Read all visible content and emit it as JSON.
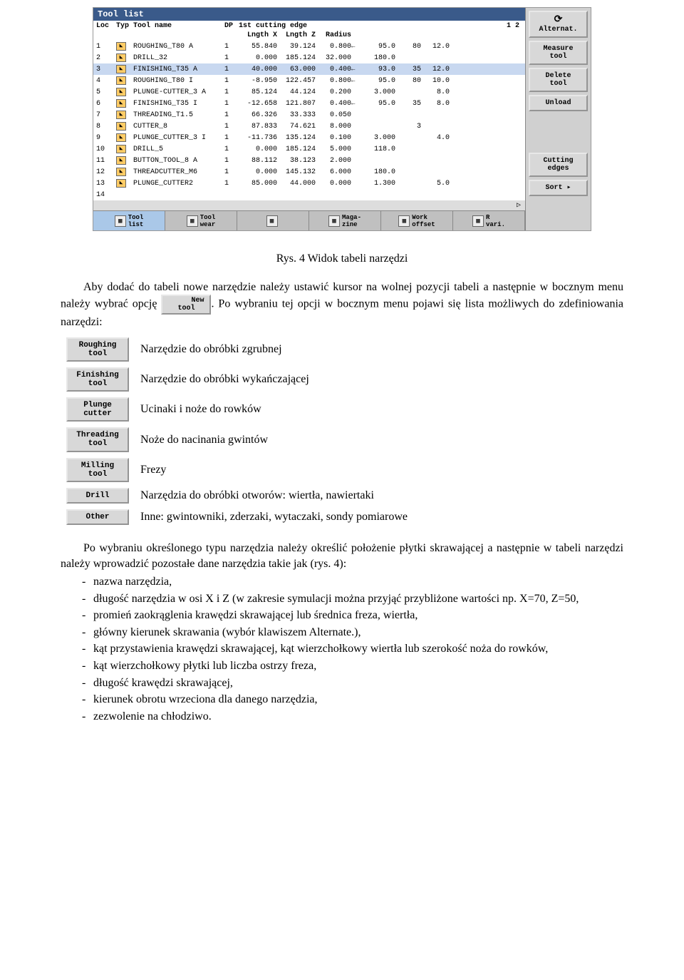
{
  "screenshot": {
    "title": "Tool list",
    "header1": {
      "loc": "Loc",
      "typ": "Typ",
      "name": "Tool name",
      "dp": "DP",
      "edge": "1st cutting edge",
      "page": "1 2"
    },
    "header2": {
      "lx": "Lngth X",
      "lz": "Lngth Z",
      "rad": "Radius"
    },
    "rows": [
      {
        "loc": "1",
        "name": "ROUGHING_T80 A",
        "dp": "1",
        "lx": "55.840",
        "lz": "39.124",
        "rad": "0.800",
        "arr": "←",
        "e1": "95.0",
        "e2": "80",
        "e3": "12.0",
        "sel": false
      },
      {
        "loc": "2",
        "name": "DRILL_32",
        "dp": "1",
        "lx": "0.000",
        "lz": "185.124",
        "rad": "32.000",
        "arr": "",
        "e1": "180.0",
        "e2": "",
        "e3": "",
        "sel": false
      },
      {
        "loc": "3",
        "name": "FINISHING_T35 A",
        "dp": "1",
        "lx": "40.000",
        "lz": "63.000",
        "rad": "0.400",
        "arr": "←",
        "e1": "93.0",
        "e2": "35",
        "e3": "12.0",
        "sel": true
      },
      {
        "loc": "4",
        "name": "ROUGHING_T80 I",
        "dp": "1",
        "lx": "-8.950",
        "lz": "122.457",
        "rad": "0.800",
        "arr": "←",
        "e1": "95.0",
        "e2": "80",
        "e3": "10.0",
        "sel": false
      },
      {
        "loc": "5",
        "name": "PLUNGE-CUTTER_3 A",
        "dp": "1",
        "lx": "85.124",
        "lz": "44.124",
        "rad": "0.200",
        "arr": "",
        "e1": "3.000",
        "e2": "",
        "e3": "8.0",
        "sel": false
      },
      {
        "loc": "6",
        "name": "FINISHING_T35 I",
        "dp": "1",
        "lx": "-12.658",
        "lz": "121.807",
        "rad": "0.400",
        "arr": "←",
        "e1": "95.0",
        "e2": "35",
        "e3": "8.0",
        "sel": false
      },
      {
        "loc": "7",
        "name": "THREADING_T1.5",
        "dp": "1",
        "lx": "66.326",
        "lz": "33.333",
        "rad": "0.050",
        "arr": "",
        "e1": "",
        "e2": "",
        "e3": "",
        "sel": false
      },
      {
        "loc": "8",
        "name": "CUTTER_8",
        "dp": "1",
        "lx": "87.833",
        "lz": "74.621",
        "rad": "8.000",
        "arr": "",
        "e1": "",
        "e2": "3",
        "e3": "",
        "sel": false
      },
      {
        "loc": "9",
        "name": "PLUNGE_CUTTER_3 I",
        "dp": "1",
        "lx": "-11.736",
        "lz": "135.124",
        "rad": "0.100",
        "arr": "",
        "e1": "3.000",
        "e2": "",
        "e3": "4.0",
        "sel": false
      },
      {
        "loc": "10",
        "name": "DRILL_5",
        "dp": "1",
        "lx": "0.000",
        "lz": "185.124",
        "rad": "5.000",
        "arr": "",
        "e1": "118.0",
        "e2": "",
        "e3": "",
        "sel": false
      },
      {
        "loc": "11",
        "name": "BUTTON_TOOL_8 A",
        "dp": "1",
        "lx": "88.112",
        "lz": "38.123",
        "rad": "2.000",
        "arr": "",
        "e1": "",
        "e2": "",
        "e3": "",
        "sel": false
      },
      {
        "loc": "12",
        "name": "THREADCUTTER_M6",
        "dp": "1",
        "lx": "0.000",
        "lz": "145.132",
        "rad": "6.000",
        "arr": "",
        "e1": "180.0",
        "e2": "",
        "e3": "",
        "sel": false
      },
      {
        "loc": "13",
        "name": "PLUNGE_CUTTER2",
        "dp": "1",
        "lx": "85.000",
        "lz": "44.000",
        "rad": "0.000",
        "arr": "",
        "e1": "1.300",
        "e2": "",
        "e3": "5.0",
        "sel": false
      },
      {
        "loc": "14",
        "name": "",
        "dp": "",
        "lx": "",
        "lz": "",
        "rad": "",
        "arr": "",
        "e1": "",
        "e2": "",
        "e3": "",
        "sel": false
      }
    ],
    "footer": [
      {
        "label": "Tool\nlist",
        "active": true
      },
      {
        "label": "Tool\nwear",
        "active": false
      },
      {
        "label": "",
        "active": false
      },
      {
        "label": "Maga-\nzine",
        "active": false
      },
      {
        "label": "Work\noffset",
        "active": false
      },
      {
        "label": "R\nvari.",
        "active": false
      }
    ],
    "sidebar": {
      "alternat": "Alternat.",
      "measure": "Measure\ntool",
      "delete": "Delete\ntool",
      "unload": "Unload",
      "cutting": "Cutting\nedges",
      "sort": "Sort"
    }
  },
  "doc": {
    "caption": "Rys. 4 Widok tabeli narzędzi",
    "p1a": "Aby dodać do tabeli nowe narzędzie należy ustawić kursor na wolnej pozycji tabeli a następnie w bocznym menu należy wybrać opcję ",
    "new_tool_btn": "New\ntool",
    "p1b": ". Po wybraniu tej opcji w bocznym menu pojawi się lista możliwych do zdefiniowania narzędzi:",
    "tools": [
      {
        "btn": "Roughing\ntool",
        "desc": "Narzędzie do obróbki zgrubnej"
      },
      {
        "btn": "Finishing\ntool",
        "desc": "Narzędzie do obróbki wykańczającej"
      },
      {
        "btn": "Plunge\ncutter",
        "desc": "Ucinaki i noże do rowków"
      },
      {
        "btn": "Threading\ntool",
        "desc": "Noże do nacinania gwintów"
      },
      {
        "btn": "Milling\ntool",
        "desc": "Frezy"
      },
      {
        "btn": "Drill",
        "desc": "Narzędzia do obróbki otworów: wiertła, nawiertaki"
      },
      {
        "btn": "Other",
        "desc": "Inne: gwintowniki, zderzaki, wytaczaki, sondy pomiarowe"
      }
    ],
    "p2": "Po wybraniu określonego typu narzędzia należy określić położenie płytki skrawającej a następnie w tabeli narzędzi należy wprowadzić pozostałe dane narzędzia takie jak (rys. 4):",
    "bullets": [
      "nazwa narzędzia,",
      "długość narzędzia w osi X i Z (w zakresie symulacji można przyjąć przybliżone wartości np. X=70, Z=50,",
      "promień zaokrąglenia krawędzi skrawającej lub średnica freza, wiertła,",
      "główny kierunek skrawania (wybór klawiszem Alternate.),",
      "kąt przystawienia krawędzi skrawającej, kąt wierzchołkowy wiertła lub szerokość noża do rowków,",
      "kąt wierzchołkowy płytki lub liczba ostrzy freza,",
      "długość krawędzi skrawającej,",
      "kierunek obrotu wrzeciona dla danego narzędzia,",
      "zezwolenie na chłodziwo."
    ]
  }
}
